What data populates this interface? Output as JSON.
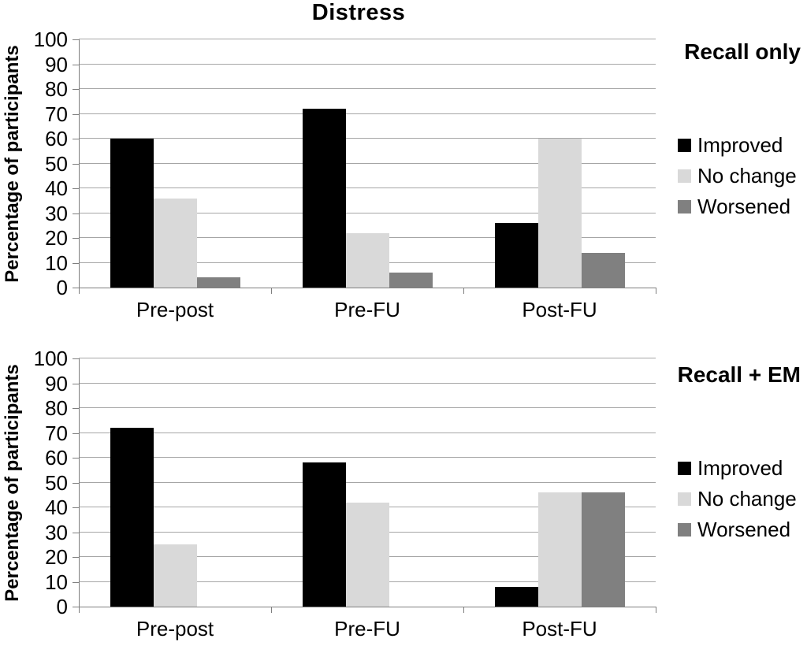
{
  "figure": {
    "title": "Distress",
    "grid_color": "#a6a6a6",
    "axis_color": "#7f7f7f",
    "series_colors": {
      "improved": "#000000",
      "no_change": "#d9d9d9",
      "worsened": "#808080"
    }
  },
  "chart_data": [
    {
      "type": "bar",
      "title": "Distress",
      "panel_label": "Recall only",
      "ylabel": "Percentage of participants",
      "xlabel": "",
      "categories": [
        "Pre-post",
        "Pre-FU",
        "Post-FU"
      ],
      "series": [
        {
          "name": "Improved",
          "color": "#000000",
          "values": [
            60,
            72,
            26
          ]
        },
        {
          "name": "No change",
          "color": "#d9d9d9",
          "values": [
            36,
            22,
            60
          ]
        },
        {
          "name": "Worsened",
          "color": "#808080",
          "values": [
            4,
            6,
            14
          ]
        }
      ],
      "ylim": [
        0,
        100
      ],
      "yticks": [
        0,
        10,
        20,
        30,
        40,
        50,
        60,
        70,
        80,
        90,
        100
      ],
      "grid": true,
      "legend_position": "right",
      "legend": [
        "Improved",
        "No change",
        "Worsened"
      ]
    },
    {
      "type": "bar",
      "title": "",
      "panel_label": "Recall + EM",
      "ylabel": "Percentage of participants",
      "xlabel": "",
      "categories": [
        "Pre-post",
        "Pre-FU",
        "Post-FU"
      ],
      "series": [
        {
          "name": "Improved",
          "color": "#000000",
          "values": [
            72,
            58,
            8
          ]
        },
        {
          "name": "No change",
          "color": "#d9d9d9",
          "values": [
            25,
            42,
            46
          ]
        },
        {
          "name": "Worsened",
          "color": "#808080",
          "values": [
            0,
            0,
            46
          ]
        }
      ],
      "ylim": [
        0,
        100
      ],
      "yticks": [
        0,
        10,
        20,
        30,
        40,
        50,
        60,
        70,
        80,
        90,
        100
      ],
      "grid": true,
      "legend_position": "right",
      "legend": [
        "Improved",
        "No change",
        "Worsened"
      ]
    }
  ]
}
